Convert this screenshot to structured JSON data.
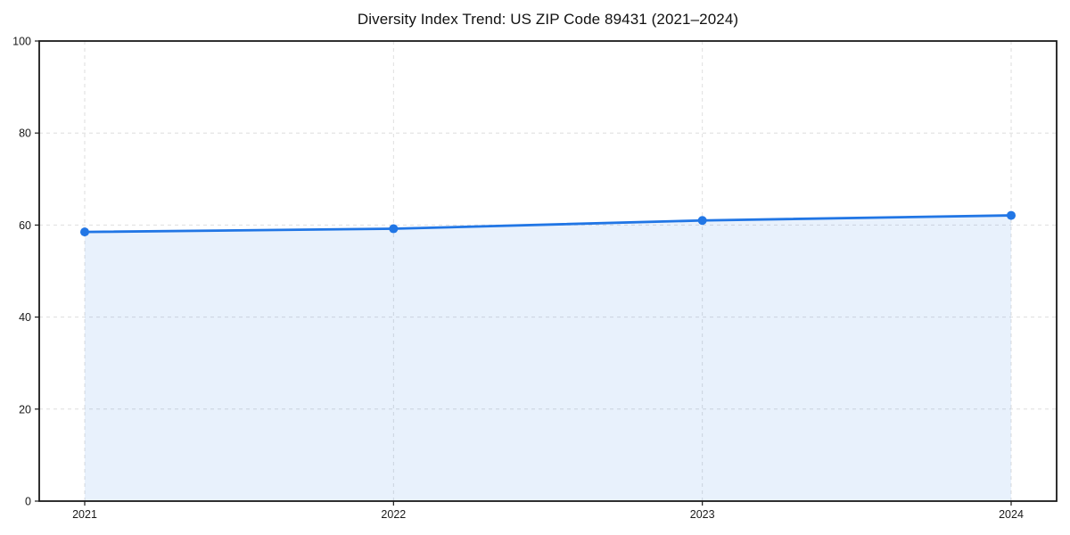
{
  "chart_data": {
    "type": "area",
    "title": "Diversity Index Trend: US ZIP Code 89431 (2021–2024)",
    "categories": [
      "2021",
      "2022",
      "2023",
      "2024"
    ],
    "series": [
      {
        "name": "Diversity Index",
        "values": [
          58.5,
          59.2,
          61.0,
          62.1
        ]
      }
    ],
    "xlabel": "",
    "ylabel": "",
    "ylim": [
      0,
      100
    ],
    "yticks": [
      0,
      20,
      40,
      60,
      80,
      100
    ],
    "grid": true,
    "grid_style": "dashed",
    "legend": false,
    "colors": {
      "line": "#2176e5",
      "marker": "#2176e5",
      "fill": "rgba(33,118,229,0.10)",
      "gridline": "#dedede",
      "spine": "#1a1a1a",
      "background": "#ffffff"
    }
  }
}
